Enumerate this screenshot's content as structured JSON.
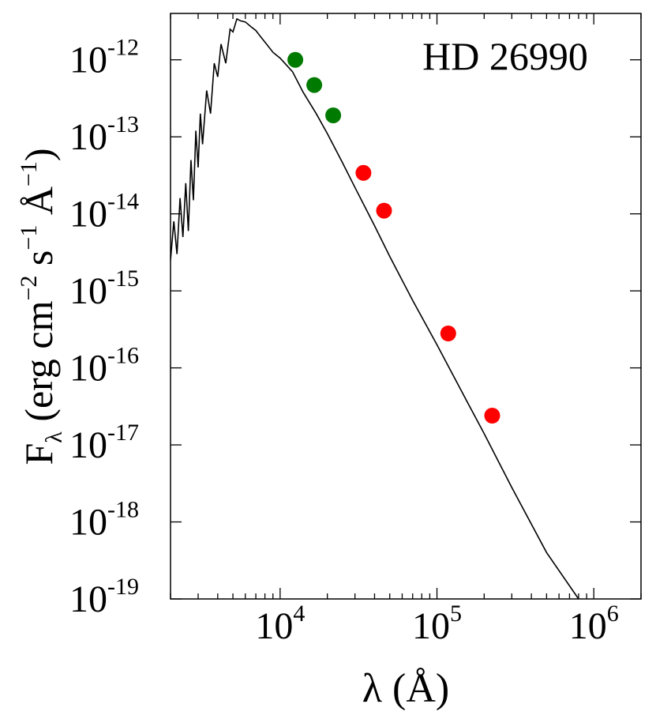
{
  "chart_data": {
    "type": "scatter",
    "title": "HD 26990",
    "xlabel": "λ (Å)",
    "ylabel": "F_λ (erg cm^-2 s^-1 Å^-1)",
    "xscale": "log",
    "yscale": "log",
    "xlim": [
      2000,
      2000000
    ],
    "ylim": [
      1e-19,
      4e-12
    ],
    "grid": false,
    "x_ticks": [
      {
        "value": 10000,
        "base": "10",
        "exp": "4"
      },
      {
        "value": 100000,
        "base": "10",
        "exp": "5"
      },
      {
        "value": 1000000,
        "base": "10",
        "exp": "6"
      }
    ],
    "y_ticks": [
      {
        "value": 1e-12,
        "base": "10",
        "exp": "-12"
      },
      {
        "value": 1e-13,
        "base": "10",
        "exp": "-13"
      },
      {
        "value": 1e-14,
        "base": "10",
        "exp": "-14"
      },
      {
        "value": 1e-15,
        "base": "10",
        "exp": "-15"
      },
      {
        "value": 1e-16,
        "base": "10",
        "exp": "-16"
      },
      {
        "value": 1e-17,
        "base": "10",
        "exp": "-17"
      },
      {
        "value": 1e-18,
        "base": "10",
        "exp": "-18"
      },
      {
        "value": 1e-19,
        "base": "10",
        "exp": "-19"
      }
    ],
    "series": [
      {
        "kind": "line",
        "color": "#000000",
        "x": [
          2000,
          2100,
          2200,
          2300,
          2400,
          2500,
          2600,
          2700,
          2800,
          2900,
          3000,
          3100,
          3200,
          3400,
          3600,
          3800,
          4000,
          4200,
          4500,
          4800,
          5000,
          5300,
          5600,
          6000,
          6500,
          7000,
          7500,
          8000,
          9000,
          10000,
          12000,
          14000,
          17000,
          20000,
          25000,
          30000,
          40000,
          50000,
          70000,
          100000,
          150000,
          200000,
          300000,
          500000,
          800000
        ],
        "y": [
          2.5e-15,
          8e-15,
          3e-15,
          1.6e-14,
          5e-15,
          2.5e-14,
          6e-15,
          5e-14,
          1.5e-14,
          1.2e-13,
          4e-14,
          2e-13,
          8e-14,
          4e-13,
          2e-13,
          9e-13,
          6e-13,
          1.6e-12,
          9e-13,
          2.5e-12,
          2.3e-12,
          3.4e-12,
          3.2e-12,
          3.1e-12,
          2.7e-12,
          2.4e-12,
          2e-12,
          1.7e-12,
          1.25e-12,
          1.05e-12,
          7e-13,
          3.8e-13,
          2e-13,
          1.1e-13,
          4.6e-14,
          2.2e-14,
          7e-15,
          2.8e-15,
          7.5e-16,
          2e-16,
          4.2e-17,
          1.4e-17,
          2.8e-18,
          4e-19,
          1e-19
        ]
      },
      {
        "kind": "points",
        "color": "#007a00",
        "x": [
          12500,
          16500,
          21800
        ],
        "y": [
          1e-12,
          4.7e-13,
          1.9e-13
        ]
      },
      {
        "kind": "points",
        "color": "#ff0000",
        "x": [
          34000,
          46000,
          118000,
          225000
        ],
        "y": [
          3.4e-14,
          1.1e-14,
          2.8e-16,
          2.4e-17
        ]
      }
    ]
  }
}
